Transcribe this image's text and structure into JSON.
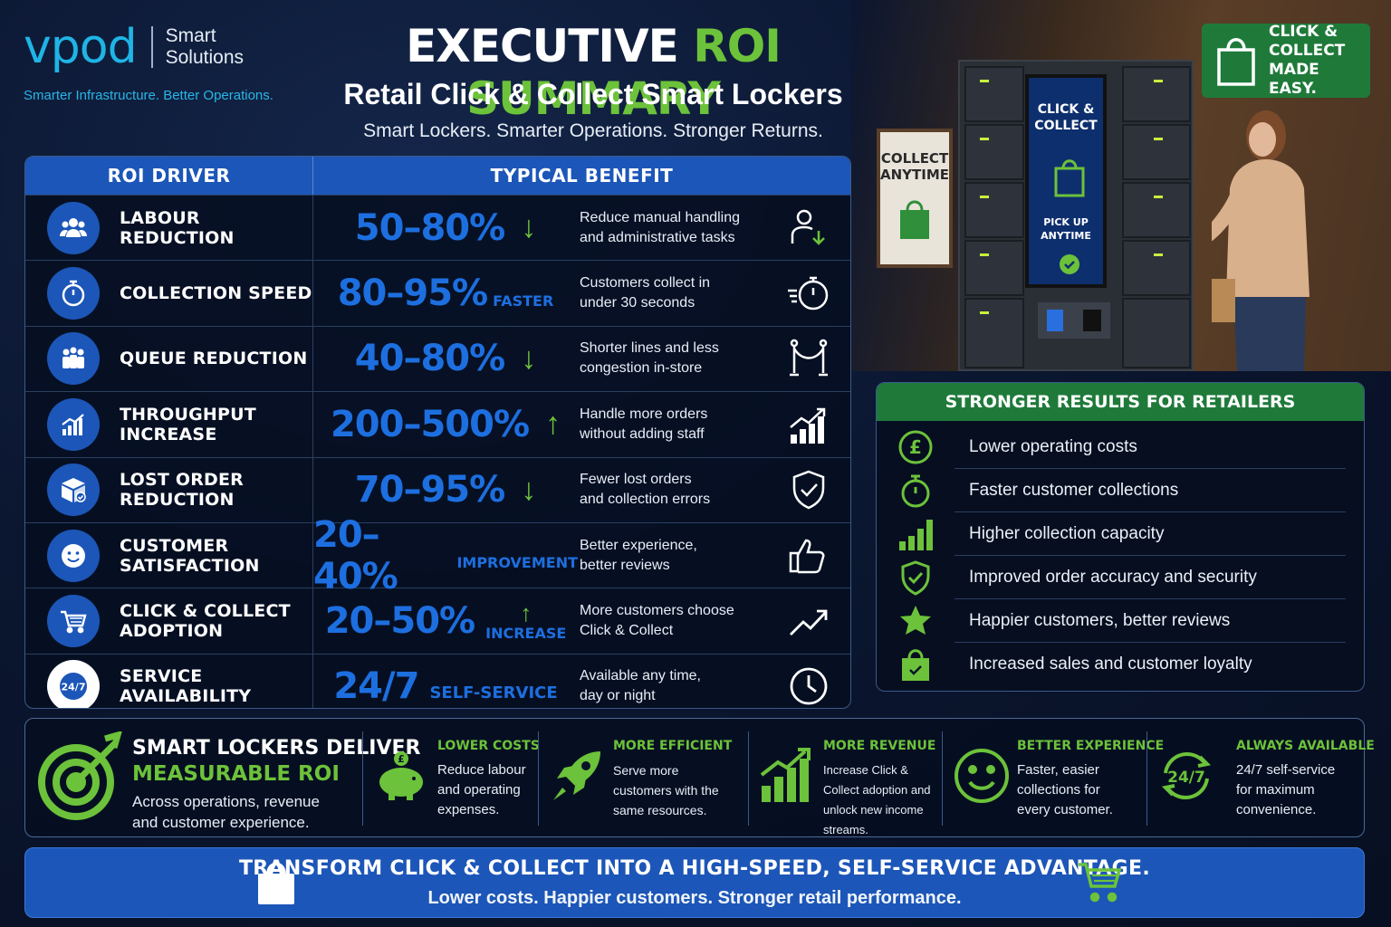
{
  "brand": {
    "logo_word": "vpod",
    "logo_sub_line1": "Smart",
    "logo_sub_line2": "Solutions",
    "tagline": "Smarter Infrastructure. Better Operations."
  },
  "header": {
    "title_white": "EXECUTIVE ",
    "title_green": "ROI SUMMARY",
    "subtitle": "Retail Click & Collect Smart Lockers",
    "slogan": "Smart Lockers. Smarter Operations. Stronger Returns."
  },
  "table": {
    "col_driver": "ROI DRIVER",
    "col_benefit": "TYPICAL BENEFIT",
    "rows": [
      {
        "driver": "LABOUR REDUCTION",
        "value": "50–80%",
        "unit": "",
        "arrow": "↓",
        "desc1": "Reduce manual handling",
        "desc2": "and administrative tasks",
        "icon": "people-icon",
        "side_icon": "person-down-icon"
      },
      {
        "driver": "COLLECTION SPEED",
        "value": "80–95%",
        "unit": "FASTER",
        "arrow": "",
        "desc1": "Customers collect in",
        "desc2": "under 30 seconds",
        "icon": "stopwatch-icon",
        "side_icon": "fast-stopwatch-icon"
      },
      {
        "driver": "QUEUE REDUCTION",
        "value": "40–80%",
        "unit": "",
        "arrow": "↓",
        "desc1": "Shorter lines and less",
        "desc2": "congestion in-store",
        "icon": "queue-icon",
        "side_icon": "stanchion-icon"
      },
      {
        "driver": "THROUGHPUT INCREASE",
        "value": "200–500%",
        "unit": "",
        "arrow": "↑",
        "desc1": "Handle more orders",
        "desc2": "without adding staff",
        "icon": "growth-chart-icon",
        "side_icon": "bar-growth-icon"
      },
      {
        "driver": "LOST ORDER REDUCTION",
        "value": "70–95%",
        "unit": "",
        "arrow": "↓",
        "desc1": "Fewer lost orders",
        "desc2": "and collection errors",
        "icon": "box-check-icon",
        "side_icon": "shield-check-icon"
      },
      {
        "driver": "CUSTOMER SATISFACTION",
        "value": "20–40%",
        "unit": "IMPROVEMENT",
        "arrow": "",
        "desc1": "Better experience,",
        "desc2": "better reviews",
        "icon": "smiley-icon",
        "side_icon": "thumbs-up-icon"
      },
      {
        "driver": "CLICK & COLLECT ADOPTION",
        "value": "20–50%",
        "unit": "INCREASE",
        "arrow": "↑",
        "desc1": "More customers choose",
        "desc2": "Click & Collect",
        "icon": "cart-icon",
        "side_icon": "trend-up-icon"
      },
      {
        "driver": "SERVICE AVAILABILITY",
        "value": "24/7",
        "unit": "SELF-SERVICE",
        "arrow": "",
        "desc1": "Available any time,",
        "desc2": "day or night",
        "icon": "247-icon",
        "side_icon": "clock-icon"
      }
    ]
  },
  "photo": {
    "collect_sign": "COLLECT ANYTIME",
    "screen_title": "CLICK & COLLECT",
    "screen_sub": "PICK UP ANYTIME",
    "badge": "CLICK & COLLECT MADE EASY."
  },
  "results": {
    "title": "STRONGER RESULTS FOR RETAILERS",
    "items": [
      {
        "text": "Lower operating costs",
        "icon": "pound-icon"
      },
      {
        "text": "Faster customer collections",
        "icon": "stopwatch-icon"
      },
      {
        "text": "Higher collection capacity",
        "icon": "signal-bars-icon"
      },
      {
        "text": "Improved order accuracy and security",
        "icon": "shield-check-icon"
      },
      {
        "text": "Happier customers, better reviews",
        "icon": "star-icon"
      },
      {
        "text": "Increased sales and customer loyalty",
        "icon": "bag-icon"
      }
    ]
  },
  "band": {
    "lead1": "SMART LOCKERS DELIVER",
    "lead2": "MEASURABLE ROI",
    "lead3": "Across operations, revenue and customer experience.",
    "features": [
      {
        "title": "LOWER COSTS",
        "desc": "Reduce labour and operating expenses.",
        "icon": "piggy-bank-icon"
      },
      {
        "title": "MORE EFFICIENT",
        "desc": "Serve more customers with the same resources.",
        "icon": "rocket-icon"
      },
      {
        "title": "MORE REVENUE",
        "desc": "Increase Click & Collect adoption and unlock new income streams.",
        "icon": "revenue-chart-icon"
      },
      {
        "title": "BETTER EXPERIENCE",
        "desc": "Faster, easier collections for every customer.",
        "icon": "smiley-icon"
      },
      {
        "title": "ALWAYS AVAILABLE",
        "desc": "24/7 self-service for maximum convenience.",
        "icon": "247-icon"
      }
    ]
  },
  "footer": {
    "line1": "TRANSFORM CLICK & COLLECT INTO A HIGH-SPEED, SELF-SERVICE ADVANTAGE.",
    "line2": "Lower costs. Happier customers. Stronger retail performance."
  },
  "colors": {
    "blue": "#1c56b8",
    "green": "#6cc23a",
    "navy": "#0a1428",
    "accent_cyan": "#1fb4e6"
  }
}
